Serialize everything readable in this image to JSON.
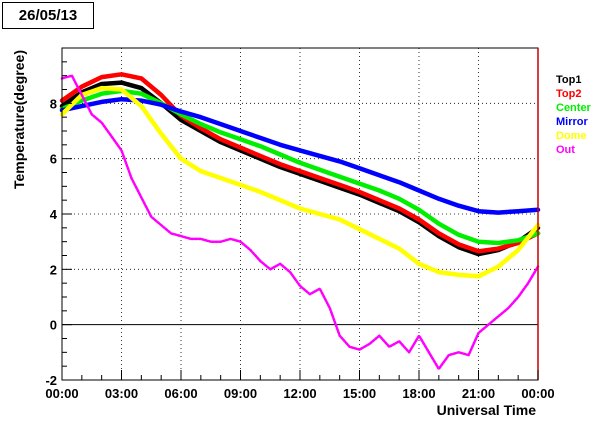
{
  "title": "26/05/13",
  "chart_data": {
    "type": "line",
    "title": "26/05/13",
    "xlabel": "Universal Time",
    "ylabel": "Temperature(degree)",
    "xlim": [
      0,
      24
    ],
    "ylim": [
      -2,
      10
    ],
    "x_tick_labels": [
      "00:00",
      "03:00",
      "06:00",
      "09:00",
      "12:00",
      "15:00",
      "18:00",
      "21:00",
      "00:00"
    ],
    "x_ticks": [
      0,
      3,
      6,
      9,
      12,
      15,
      18,
      21,
      24
    ],
    "y_ticks": [
      -2,
      0,
      2,
      4,
      6,
      8
    ],
    "y_tick_labels": [
      "-2",
      "0",
      "2",
      "4",
      "6",
      "8"
    ],
    "grid": true,
    "legend_position": "right",
    "series": [
      {
        "name": "Top1",
        "color": "#000000",
        "x": [
          0,
          1,
          2,
          3,
          4,
          5,
          6,
          7,
          8,
          9,
          10,
          11,
          12,
          13,
          14,
          15,
          16,
          17,
          18,
          19,
          20,
          21,
          22,
          23,
          24
        ],
        "y": [
          7.9,
          8.4,
          8.7,
          8.75,
          8.55,
          8.0,
          7.4,
          7.0,
          6.6,
          6.3,
          6.0,
          5.7,
          5.45,
          5.2,
          4.95,
          4.7,
          4.4,
          4.1,
          3.7,
          3.2,
          2.8,
          2.55,
          2.7,
          3.0,
          3.5
        ]
      },
      {
        "name": "Top2",
        "color": "#ff0000",
        "x": [
          0,
          1,
          2,
          3,
          4,
          5,
          6,
          7,
          8,
          9,
          10,
          11,
          12,
          13,
          14,
          15,
          16,
          17,
          18,
          19,
          20,
          21,
          22,
          23,
          24
        ],
        "y": [
          8.1,
          8.6,
          8.95,
          9.05,
          8.9,
          8.3,
          7.55,
          7.1,
          6.7,
          6.4,
          6.1,
          5.8,
          5.55,
          5.3,
          5.05,
          4.8,
          4.5,
          4.2,
          3.8,
          3.3,
          2.9,
          2.65,
          2.75,
          2.95,
          3.3
        ]
      },
      {
        "name": "Center",
        "color": "#00ee00",
        "x": [
          0,
          1,
          2,
          3,
          4,
          5,
          6,
          7,
          8,
          9,
          10,
          11,
          12,
          13,
          14,
          15,
          16,
          17,
          18,
          19,
          20,
          21,
          22,
          23,
          24
        ],
        "y": [
          7.8,
          8.1,
          8.35,
          8.45,
          8.35,
          8.0,
          7.6,
          7.25,
          6.95,
          6.7,
          6.45,
          6.15,
          5.85,
          5.6,
          5.35,
          5.1,
          4.85,
          4.55,
          4.15,
          3.65,
          3.25,
          3.0,
          2.95,
          3.05,
          3.3
        ]
      },
      {
        "name": "Mirror",
        "color": "#0000ff",
        "x": [
          0,
          1,
          2,
          3,
          4,
          5,
          6,
          7,
          8,
          9,
          10,
          11,
          12,
          13,
          14,
          15,
          16,
          17,
          18,
          19,
          20,
          21,
          22,
          23,
          24
        ],
        "y": [
          7.75,
          7.9,
          8.05,
          8.15,
          8.1,
          7.95,
          7.7,
          7.5,
          7.25,
          7.0,
          6.75,
          6.5,
          6.3,
          6.1,
          5.9,
          5.65,
          5.4,
          5.15,
          4.85,
          4.55,
          4.3,
          4.1,
          4.05,
          4.1,
          4.15
        ]
      },
      {
        "name": "Dome",
        "color": "#ffff00",
        "x": [
          0,
          1,
          2,
          3,
          4,
          5,
          6,
          7,
          8,
          9,
          10,
          11,
          12,
          13,
          14,
          15,
          16,
          17,
          18,
          19,
          20,
          21,
          22,
          23,
          24
        ],
        "y": [
          7.6,
          8.3,
          8.55,
          8.5,
          7.9,
          6.9,
          6.0,
          5.55,
          5.3,
          5.05,
          4.8,
          4.5,
          4.2,
          4.0,
          3.8,
          3.45,
          3.1,
          2.75,
          2.2,
          1.9,
          1.8,
          1.75,
          2.1,
          2.7,
          3.6
        ]
      },
      {
        "name": "Out",
        "color": "#ff00ff",
        "x": [
          0,
          0.5,
          1,
          1.5,
          2,
          2.5,
          3,
          3.5,
          4,
          4.5,
          5,
          5.5,
          6,
          6.5,
          7,
          7.5,
          8,
          8.5,
          9,
          9.5,
          10,
          10.5,
          11,
          11.5,
          12,
          12.5,
          13,
          13.5,
          14,
          14.5,
          15,
          15.5,
          16,
          16.5,
          17,
          17.5,
          18,
          18.5,
          19,
          19.5,
          20,
          20.5,
          21,
          21.5,
          22,
          22.5,
          23,
          23.5,
          24
        ],
        "y": [
          8.9,
          9.0,
          8.3,
          7.6,
          7.3,
          6.8,
          6.3,
          5.3,
          4.6,
          3.9,
          3.6,
          3.3,
          3.2,
          3.1,
          3.1,
          3.0,
          3.0,
          3.1,
          3.0,
          2.7,
          2.3,
          2.0,
          2.2,
          1.9,
          1.4,
          1.1,
          1.3,
          0.6,
          -0.4,
          -0.8,
          -0.9,
          -0.7,
          -0.4,
          -0.8,
          -0.6,
          -1.0,
          -0.4,
          -1.0,
          -1.6,
          -1.1,
          -1.0,
          -1.1,
          -0.3,
          0.0,
          0.3,
          0.6,
          1.0,
          1.5,
          2.1
        ]
      }
    ]
  }
}
